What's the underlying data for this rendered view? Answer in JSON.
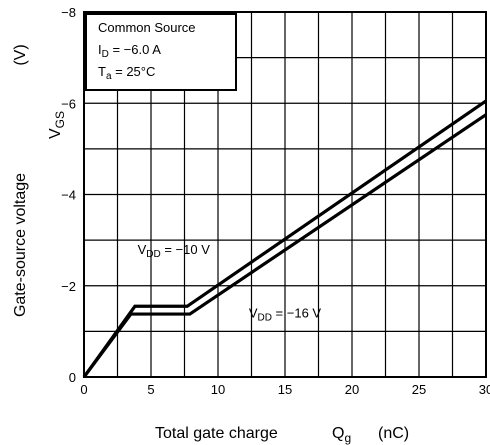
{
  "chart_data": {
    "type": "line",
    "xlabel": "Total gate charge",
    "xlabel_symbol": "Q",
    "xlabel_symbol_sub": "g",
    "xlabel_unit": "(nC)",
    "ylabel": "Gate-source voltage",
    "ylabel_symbol": "V",
    "ylabel_symbol_sub": "GS",
    "ylabel_unit": "(V)",
    "xlim": [
      0,
      30
    ],
    "ylim": [
      0,
      -8
    ],
    "xticks": [
      0,
      5,
      10,
      15,
      20,
      25,
      30
    ],
    "xtick_labels": [
      "0",
      "5",
      "10",
      "15",
      "20",
      "25",
      "30"
    ],
    "yticks": [
      0,
      -2,
      -4,
      -6,
      -8
    ],
    "ytick_labels": [
      "0",
      "−2",
      "−4",
      "−6",
      "−8"
    ],
    "grid": true,
    "grid_x_step": 2.5,
    "grid_y_step": 1,
    "conditions_box": {
      "line1": "Common Source",
      "line2_prefix": "I",
      "line2_sub": "D",
      "line2_value": " = −6.0 A",
      "line3_prefix": "T",
      "line3_sub": "a",
      "line3_value": " = 25°C"
    },
    "series": [
      {
        "name": "VDD = −10 V",
        "label_prefix": "V",
        "label_sub": "DD",
        "label_value": " = −10 V",
        "x": [
          0,
          3.8,
          7.7,
          30
        ],
        "y": [
          0,
          -1.55,
          -1.55,
          -6.05
        ]
      },
      {
        "name": "VDD = −16 V",
        "label_prefix": "V",
        "label_sub": "DD",
        "label_value": " = −16 V",
        "x": [
          0,
          3.5,
          7.9,
          30
        ],
        "y": [
          0,
          -1.38,
          -1.38,
          -5.75
        ]
      }
    ]
  }
}
